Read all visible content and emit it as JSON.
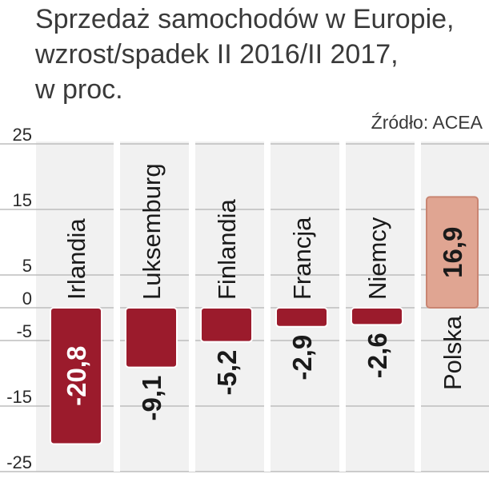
{
  "header": {
    "title_lines": [
      "Sprzedaż samochodów w Europie,",
      "wzrost/spadek II 2016/II 2017,",
      "w proc."
    ],
    "source": "Źródło: ACEA"
  },
  "chart_data": {
    "type": "bar",
    "title": "Sprzedaż samochodów w Europie, wzrost/spadek II 2016/II 2017, w proc.",
    "categories": [
      "Irlandia",
      "Luksemburg",
      "Finlandia",
      "Francja",
      "Niemcy",
      "Polska"
    ],
    "values": [
      -20.8,
      -9.1,
      -5.2,
      -2.9,
      -2.6,
      16.9
    ],
    "value_labels": [
      "-20,8",
      "-9,1",
      "-5,2",
      "-2,9",
      "-2,6",
      "16,9"
    ],
    "yticks": [
      "25",
      "15",
      "5",
      "0",
      "-5",
      "-15",
      "-25"
    ],
    "ylim": [
      -25,
      25
    ],
    "grid": true,
    "colors": {
      "bar": "#9b1b2c",
      "highlight_bar": "#e0a592",
      "background_column": "#f1f1f1",
      "grid": "#bdbdbd"
    }
  }
}
